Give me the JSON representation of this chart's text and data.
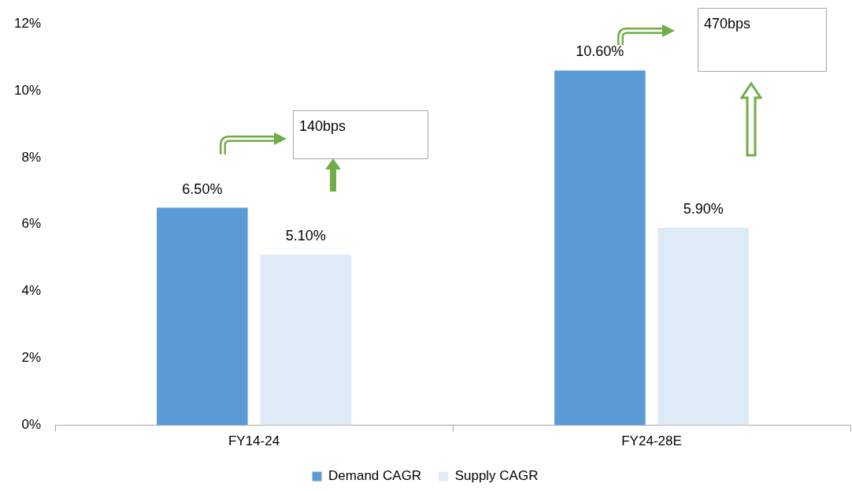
{
  "chart_data": {
    "type": "bar",
    "categories": [
      "FY14-24",
      "FY24-28E"
    ],
    "series": [
      {
        "name": "Demand CAGR",
        "color": "#5b9bd5",
        "values": [
          6.5,
          10.6
        ],
        "value_labels": [
          "6.50%",
          "10.60%"
        ]
      },
      {
        "name": "Supply CAGR",
        "color": "#deeaf6",
        "values": [
          5.1,
          5.9
        ],
        "value_labels": [
          "5.10%",
          "5.90%"
        ]
      }
    ],
    "ylim": [
      0,
      12
    ],
    "yticks": [
      {
        "value": 0,
        "label": "0%"
      },
      {
        "value": 2,
        "label": "2%"
      },
      {
        "value": 4,
        "label": "4%"
      },
      {
        "value": 6,
        "label": "6%"
      },
      {
        "value": 8,
        "label": "8%"
      },
      {
        "value": 10,
        "label": "10%"
      },
      {
        "value": 12,
        "label": "12%"
      }
    ],
    "annotations": [
      "140bps",
      "470bps"
    ],
    "legend": "bottom",
    "grid": false
  }
}
